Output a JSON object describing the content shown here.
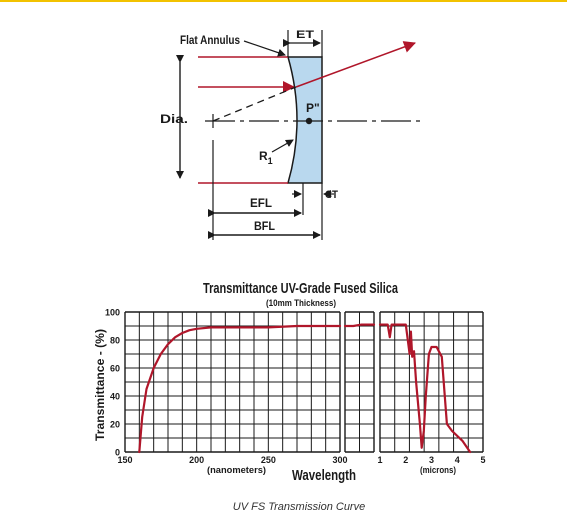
{
  "lens_diagram": {
    "labels": {
      "flat_annulus": "Flat Annulus",
      "et": "ET",
      "dia": "Dia.",
      "p": "P\"",
      "r": "R",
      "r_sub": "1",
      "ct": "CT",
      "efl": "EFL",
      "bfl": "BFL"
    },
    "colors": {
      "lens_fill": "#b9d8ee",
      "ray": "#b0162a",
      "line": "#1a1a1a"
    }
  },
  "chart": {
    "title": "Transmittance UV-Grade Fused Silica",
    "subtitle": "(10mm Thickness)",
    "ylabel": "Transmittance - (%)",
    "xlabel": "Wavelength",
    "unit_nm": "(nanometers)",
    "unit_um": "(microns)",
    "caption": "UV FS Transmission Curve"
  },
  "chart_data": {
    "type": "line",
    "title": "Transmittance UV-Grade Fused Silica",
    "subtitle": "(10mm Thickness)",
    "ylabel": "Transmittance - (%)",
    "xlabel": "Wavelength",
    "ylim": [
      0,
      100
    ],
    "y_ticks": [
      "0",
      "20",
      "40",
      "60",
      "80",
      "100"
    ],
    "grid": true,
    "line_color": "#b0162a",
    "panels": [
      {
        "unit": "(nanometers)",
        "xlim": [
          150,
          300
        ],
        "x_ticks": [
          "150",
          "200",
          "250",
          "300"
        ],
        "x": [
          160,
          162,
          165,
          170,
          175,
          180,
          185,
          190,
          195,
          200,
          210,
          230,
          250,
          270,
          300
        ],
        "y": [
          0,
          25,
          45,
          60,
          70,
          77,
          82,
          85,
          87,
          88,
          89,
          89,
          89,
          90,
          90
        ]
      },
      {
        "unit": "",
        "xlim": [
          300,
          1000
        ],
        "x_ticks": [],
        "x": [
          300,
          500,
          700,
          1000
        ],
        "y": [
          90,
          90,
          91,
          91
        ]
      },
      {
        "unit": "(microns)",
        "xlim": [
          1,
          5
        ],
        "x_ticks": [
          "1",
          "2",
          "3",
          "4",
          "5"
        ],
        "x": [
          1.0,
          1.3,
          1.38,
          1.45,
          1.5,
          1.8,
          2.0,
          2.15,
          2.2,
          2.25,
          2.32,
          2.4,
          2.55,
          2.62,
          2.7,
          2.78,
          2.9,
          3.0,
          3.2,
          3.4,
          3.6,
          3.8,
          4.2,
          4.5
        ],
        "y": [
          91,
          91,
          82,
          91,
          91,
          91,
          91,
          70,
          86,
          68,
          72,
          50,
          20,
          3,
          15,
          40,
          70,
          75,
          75,
          68,
          20,
          15,
          8,
          0
        ]
      }
    ]
  }
}
